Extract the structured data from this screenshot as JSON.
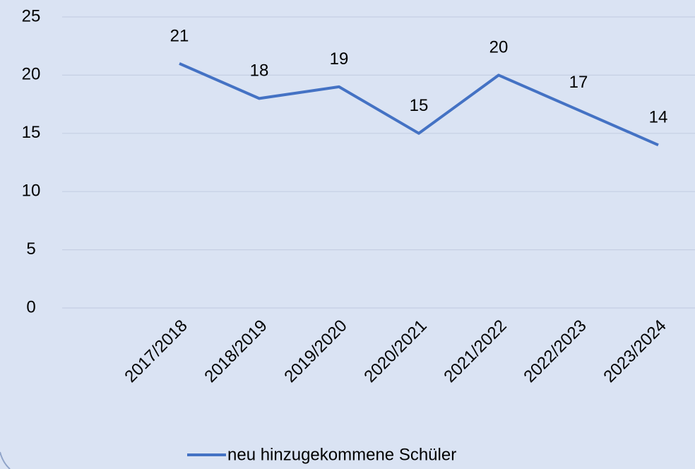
{
  "chart_data": {
    "type": "line",
    "categories": [
      "2017/2018",
      "2018/2019",
      "2019/2020",
      "2020/2021",
      "2021/2022",
      "2022/2023",
      "2023/2024"
    ],
    "series": [
      {
        "name": "neu hinzugekommene Schüler",
        "color": "#4472c4",
        "values": [
          21,
          18,
          19,
          15,
          20,
          17,
          14
        ]
      }
    ],
    "ylim": [
      0,
      25
    ],
    "yticks": [
      0,
      5,
      10,
      15,
      20,
      25
    ],
    "grid": true,
    "legend": "bottom"
  }
}
